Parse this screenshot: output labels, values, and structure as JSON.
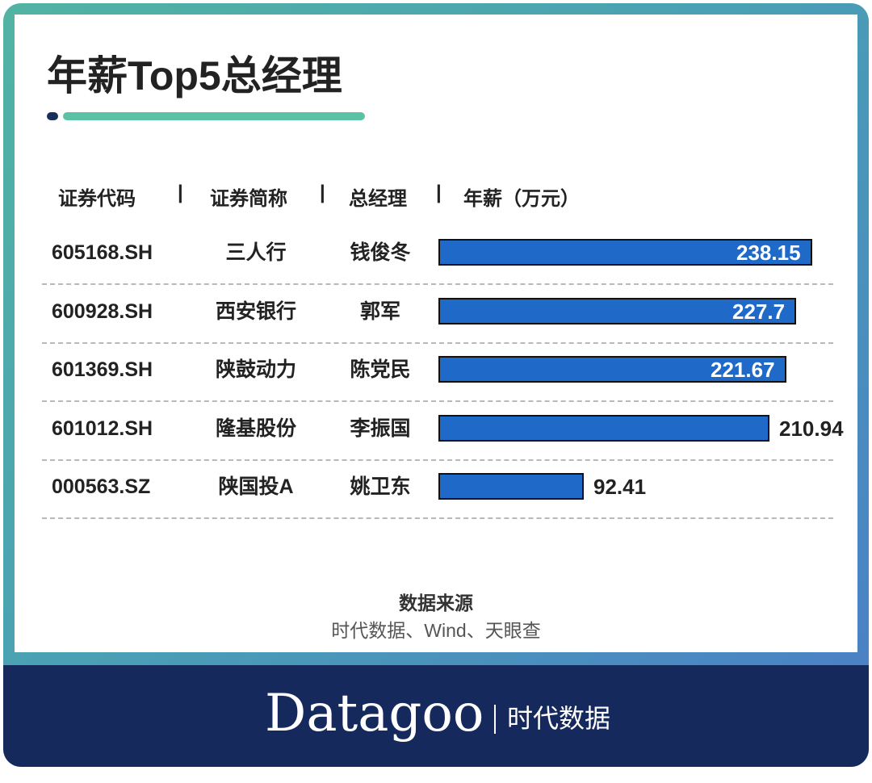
{
  "title": "年薪Top5总经理",
  "headers": {
    "code": "证券代码",
    "name": "证券简称",
    "manager": "总经理",
    "salary": "年薪（万元）",
    "separator": "|"
  },
  "chart_data": {
    "type": "bar",
    "orientation": "horizontal",
    "title": "年薪Top5总经理",
    "columns": [
      "证券代码",
      "证券简称",
      "总经理",
      "年薪（万元）"
    ],
    "categories": [
      "605168.SH",
      "600928.SH",
      "601369.SH",
      "601012.SH",
      "000563.SZ"
    ],
    "names": [
      "三人行",
      "西安银行",
      "陕鼓动力",
      "隆基股份",
      "陕国投A"
    ],
    "managers": [
      "钱俊冬",
      "郭军",
      "陈党民",
      "李振国",
      "姚卫东"
    ],
    "values": [
      238.15,
      227.7,
      221.67,
      210.94,
      92.41
    ],
    "value_labels": [
      "238.15",
      "227.7",
      "221.67",
      "210.94",
      "92.41"
    ],
    "xlim": [
      0,
      238.15
    ],
    "grid": false,
    "bar_color": "#1f69c9"
  },
  "source": {
    "title": "数据来源",
    "text": "时代数据、Wind、天眼查"
  },
  "brand": {
    "logo": "Datagoo",
    "name": "时代数据"
  },
  "colors": {
    "frame_gradient": [
      "#52b3a3",
      "#4a7ec7"
    ],
    "footer": "#16295c",
    "accent": "#5cc2a5"
  }
}
